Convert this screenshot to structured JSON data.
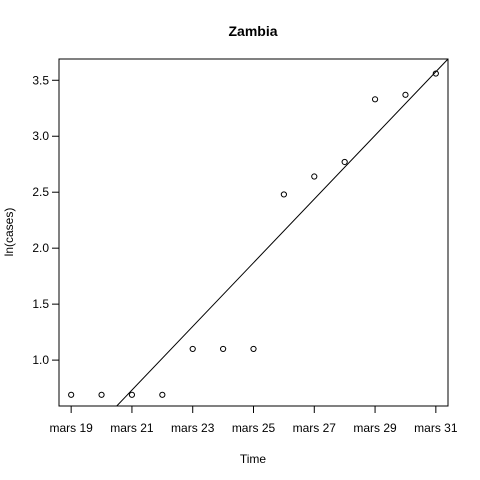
{
  "chart_data": {
    "type": "scatter",
    "title": "Zambia",
    "xlabel": "Time",
    "ylabel": "ln(cases)",
    "x_tick_labels": [
      "mars 19",
      "mars 21",
      "mars 23",
      "mars 25",
      "mars 27",
      "mars 29",
      "mars 31"
    ],
    "y_tick_labels": [
      "1.0",
      "1.5",
      "2.0",
      "2.5",
      "3.0",
      "3.5"
    ],
    "x_ticks": [
      "2020-03-19",
      "2020-03-21",
      "2020-03-23",
      "2020-03-25",
      "2020-03-27",
      "2020-03-29",
      "2020-03-31"
    ],
    "y_ticks": [
      1.0,
      1.5,
      2.0,
      2.5,
      3.0,
      3.5
    ],
    "xlim": [
      "2020-03-18.6",
      "2020-03-31.4"
    ],
    "ylim": [
      0.59,
      3.69
    ],
    "points": [
      {
        "x": "2020-03-19",
        "y": 0.69
      },
      {
        "x": "2020-03-20",
        "y": 0.69
      },
      {
        "x": "2020-03-21",
        "y": 0.69
      },
      {
        "x": "2020-03-22",
        "y": 0.69
      },
      {
        "x": "2020-03-23",
        "y": 1.1
      },
      {
        "x": "2020-03-24",
        "y": 1.1
      },
      {
        "x": "2020-03-25",
        "y": 1.1
      },
      {
        "x": "2020-03-26",
        "y": 2.48
      },
      {
        "x": "2020-03-27",
        "y": 2.64
      },
      {
        "x": "2020-03-28",
        "y": 2.77
      },
      {
        "x": "2020-03-29",
        "y": 3.33
      },
      {
        "x": "2020-03-30",
        "y": 3.37
      },
      {
        "x": "2020-03-31",
        "y": 3.56
      }
    ],
    "fit_line": {
      "from": {
        "x": "2020-03-20.5",
        "y": 0.59
      },
      "to": {
        "x": "2020-03-31.4",
        "y": 3.69
      }
    },
    "grid": false,
    "legend": "none"
  }
}
